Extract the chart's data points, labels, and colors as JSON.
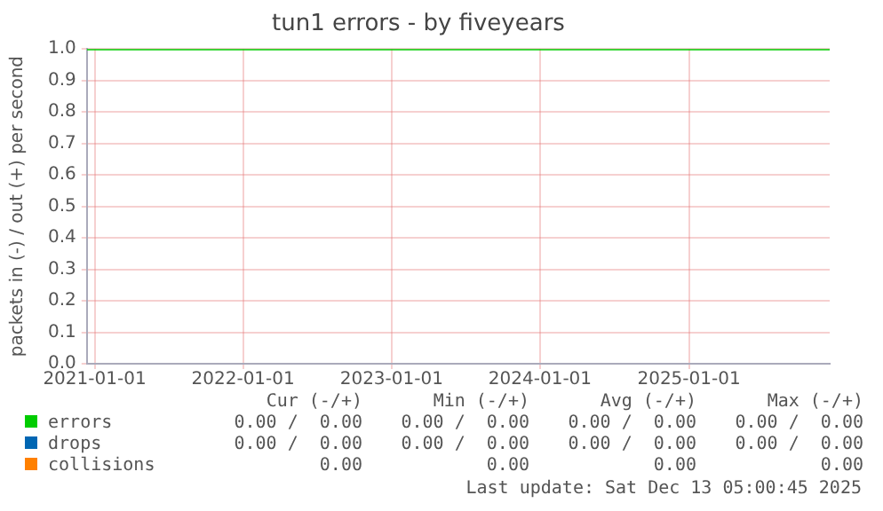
{
  "chart_data": {
    "type": "line",
    "title": "tun1 errors - by fiveyears",
    "ylabel": "packets in (-) / out (+) per second",
    "x": [
      "2020-12-13",
      "2025-12-13"
    ],
    "series": [
      {
        "name": "errors",
        "color": "#00cc00",
        "values": [
          1,
          1
        ]
      },
      {
        "name": "drops",
        "color": "#0066b3",
        "values": [
          null,
          null
        ]
      },
      {
        "name": "collisions",
        "color": "#ff8000",
        "values": [
          null,
          null
        ]
      }
    ],
    "xlim": [
      "2020-12-13",
      "2025-12-13"
    ],
    "xticks": [
      {
        "value": "2021-01-01",
        "label": "2021-01-01"
      },
      {
        "value": "2022-01-01",
        "label": "2022-01-01"
      },
      {
        "value": "2023-01-01",
        "label": "2023-01-01"
      },
      {
        "value": "2024-01-01",
        "label": "2024-01-01"
      },
      {
        "value": "2025-01-01",
        "label": "2025-01-01"
      }
    ],
    "ylim": [
      0,
      1
    ],
    "yticks": [
      {
        "value": 0,
        "label": "0.0"
      },
      0.1,
      0.2,
      0.3,
      0.4,
      0.5,
      0.6,
      0.7,
      0.8,
      0.9,
      {
        "value": 1,
        "label": "1.0"
      }
    ],
    "grid": true,
    "legend": "bottom",
    "marker": "none",
    "line_style": "solid",
    "annotations": [
      "Cur (-/+)",
      "Min (-/+)",
      "Avg (-/+)",
      "Max (-/+)",
      "0.00 /  0.00",
      "0.00 /  0.00",
      "0.00 /  0.00",
      "0.00 /  0.00",
      "0.00 /  0.00",
      "0.00 /  0.00",
      "0.00 /  0.00",
      "0.00 /  0.00",
      "0.00",
      "0.00",
      "0.00",
      "0.00",
      "Last update: Sat Dec 13 05:00:45 2025"
    ]
  }
}
